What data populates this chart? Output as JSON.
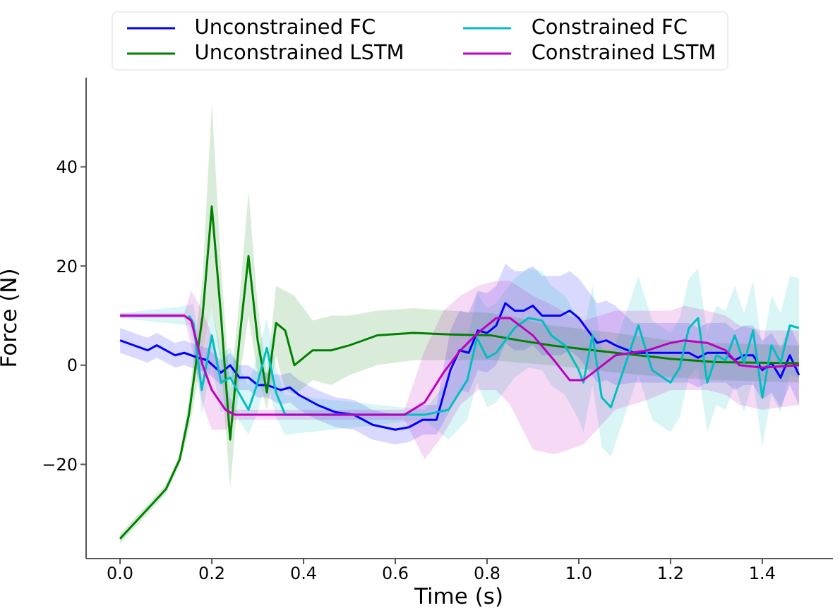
{
  "chart_data": {
    "type": "line",
    "xlabel": "Time (s)",
    "ylabel": "Force (N)",
    "xlim": [
      -0.074,
      1.554
    ],
    "ylim": [
      -39,
      58
    ],
    "xticks": [
      {
        "value": 0,
        "label": "0.0"
      },
      {
        "value": 0.2,
        "label": "0.2"
      },
      {
        "value": 0.4,
        "label": "0.4"
      },
      {
        "value": 0.6,
        "label": "0.6"
      },
      {
        "value": 0.8,
        "label": "0.8"
      },
      {
        "value": 1,
        "label": "1.0"
      },
      {
        "value": 1.2,
        "label": "1.2"
      },
      {
        "value": 1.4,
        "label": "1.4"
      }
    ],
    "yticks": [
      {
        "value": -20,
        "label": "−20"
      },
      0,
      20,
      40
    ],
    "grid": false,
    "legend": "top",
    "marker": "none",
    "line_style": "solid",
    "series": [
      {
        "name": "Unconstrained FC",
        "color": "#0000ff",
        "x": [
          0,
          0.06,
          0.08,
          0.12,
          0.14,
          0.17,
          0.19,
          0.22,
          0.24,
          0.26,
          0.28,
          0.3,
          0.32,
          0.35,
          0.37,
          0.39,
          0.43,
          0.47,
          0.51,
          0.55,
          0.6,
          0.63,
          0.66,
          0.69,
          0.72,
          0.74,
          0.76,
          0.78,
          0.8,
          0.82,
          0.84,
          0.86,
          0.88,
          0.9,
          0.92,
          0.94,
          0.96,
          0.98,
          1.0,
          1.02,
          1.04,
          1.06,
          1.08,
          1.12,
          1.2,
          1.24,
          1.26,
          1.28,
          1.3,
          1.32,
          1.34,
          1.36,
          1.38,
          1.4,
          1.42,
          1.44,
          1.46,
          1.48
        ],
        "values": [
          5,
          3,
          4,
          2,
          2.5,
          1.5,
          1,
          -1.5,
          0,
          -2.5,
          -2.5,
          -4,
          -4,
          -5,
          -4.5,
          -6,
          -8,
          -9.5,
          -10,
          -12,
          -13,
          -12.5,
          -11,
          -11,
          -1,
          3,
          2.5,
          7,
          6.5,
          8,
          12.5,
          11,
          11,
          12,
          10,
          10,
          10,
          11,
          9.5,
          7,
          4.5,
          5,
          4,
          2.5,
          2.5,
          2.5,
          1.5,
          2.5,
          2.5,
          2.5,
          1,
          2,
          2,
          -1,
          0.5,
          -2.5,
          2,
          -2
        ],
        "lower": [
          2.5,
          0.5,
          1.5,
          -0.5,
          0,
          -1,
          -1.5,
          -4,
          -2.5,
          -5,
          -5,
          -6.5,
          -6.5,
          -8,
          -7.5,
          -9,
          -11,
          -12.5,
          -13,
          -15,
          -16,
          -15.5,
          -14,
          -14,
          -9,
          -5,
          -5.5,
          -1,
          -1.5,
          0,
          4.5,
          3,
          3,
          4,
          2,
          2,
          2,
          3,
          1.5,
          -1,
          -3.5,
          -3,
          -4,
          -3.5,
          -3.5,
          -3.5,
          -4.5,
          -3.5,
          -3.5,
          -3.5,
          -5,
          -4,
          -4,
          -7,
          -5.5,
          -8.5,
          -4,
          -8
        ],
        "upper": [
          7.5,
          5.5,
          6.5,
          4.5,
          5,
          4,
          3.5,
          1,
          2.5,
          0,
          0,
          -1.5,
          -1.5,
          -2,
          -1.5,
          -3,
          -5,
          -6.5,
          -7,
          -9,
          -10,
          -9.5,
          -8,
          -8,
          7,
          11,
          10.5,
          15,
          14.5,
          16,
          20.5,
          19,
          19,
          20,
          18,
          18,
          18,
          19,
          17.5,
          15,
          12.5,
          13,
          12,
          8.5,
          8.5,
          8.5,
          7.5,
          8.5,
          8.5,
          8.5,
          7,
          8,
          8,
          5,
          6.5,
          3.5,
          8,
          4
        ]
      },
      {
        "name": "Unconstrained LSTM",
        "color": "#008000",
        "x": [
          0,
          0.02,
          0.05,
          0.07,
          0.1,
          0.11,
          0.13,
          0.15,
          0.18,
          0.2,
          0.22,
          0.24,
          0.26,
          0.28,
          0.3,
          0.32,
          0.34,
          0.36,
          0.38,
          0.42,
          0.46,
          0.5,
          0.56,
          0.64,
          0.72,
          0.81,
          0.87,
          0.94,
          1.08,
          1.2,
          1.3,
          1.48
        ],
        "values": [
          -35,
          -33,
          -30,
          -28,
          -25,
          -23,
          -19,
          -10,
          10,
          32,
          10,
          -15,
          5,
          22,
          5,
          -5.5,
          8.5,
          7,
          0,
          3,
          3,
          4,
          6,
          6.5,
          6.2,
          6,
          5,
          4,
          2.5,
          1.3,
          0.6,
          0.4
        ],
        "lower": [
          -36,
          -34,
          -31,
          -29,
          -26,
          -24,
          -20,
          -13,
          2,
          12,
          0,
          -25,
          -3,
          10,
          -2,
          -9,
          2,
          -5,
          -6,
          -3,
          -4,
          -2,
          0,
          1,
          1,
          1,
          0.5,
          0,
          -1.5,
          -2.5,
          -3,
          -3.5
        ],
        "upper": [
          -34,
          -32,
          -29,
          -27,
          -24,
          -22,
          -18,
          -7,
          18,
          53,
          20,
          -5,
          13,
          35,
          12,
          -2,
          16,
          15,
          14,
          9,
          10,
          10,
          11,
          11.5,
          11,
          10.5,
          9.5,
          8,
          6.5,
          5,
          4.5,
          4
        ]
      },
      {
        "name": "Constrained FC",
        "color": "#00bfbf",
        "x": [
          0,
          0.15,
          0.16,
          0.178,
          0.2,
          0.22,
          0.24,
          0.28,
          0.3,
          0.32,
          0.34,
          0.36,
          0.664,
          0.716,
          0.757,
          0.778,
          0.8,
          0.82,
          0.86,
          0.89,
          0.92,
          0.94,
          0.97,
          1.0,
          1.01,
          1.03,
          1.05,
          1.07,
          1.13,
          1.16,
          1.2,
          1.22,
          1.24,
          1.26,
          1.28,
          1.3,
          1.32,
          1.34,
          1.36,
          1.38,
          1.4,
          1.42,
          1.44,
          1.46,
          1.48
        ],
        "values": [
          null,
          10,
          8.5,
          -5,
          6,
          -3.5,
          -2.5,
          -9,
          -3.5,
          3.5,
          -5.5,
          -10,
          -10,
          -9,
          -3,
          5.5,
          1.5,
          2.5,
          7.5,
          9.5,
          9,
          6,
          4,
          -1,
          -3.5,
          6,
          -6.5,
          -8.5,
          8,
          -1,
          -3.5,
          -0.5,
          7.5,
          9.5,
          -3.5,
          2,
          1,
          6,
          0.5,
          7,
          -6.5,
          4,
          0.5,
          8,
          7.5
        ],
        "lower": [
          9.5,
          8,
          4.5,
          -10,
          0,
          -9.5,
          -8.5,
          -14,
          -9.5,
          -2.5,
          -10.5,
          -14,
          -11,
          -15,
          -11,
          -3.5,
          -8.5,
          -7.5,
          -2.5,
          -0.5,
          -1,
          -4,
          -6,
          -11,
          -13.5,
          -4,
          -16.5,
          -18.5,
          -2,
          -11,
          -13.5,
          -10.5,
          -2.5,
          -0.5,
          -13.5,
          -8,
          -9,
          -4,
          -9.5,
          -3,
          -16.5,
          -6,
          -9.5,
          -2,
          -2.5
        ],
        "upper": [
          10.5,
          12,
          12.5,
          0,
          12,
          2.5,
          3.5,
          -4,
          2.5,
          9.5,
          -0.5,
          -6,
          -9,
          -3,
          5,
          14.5,
          11.5,
          12.5,
          17.5,
          19.5,
          19,
          16,
          14,
          9,
          6.5,
          16,
          3.5,
          1.5,
          18,
          9,
          6.5,
          9.5,
          17.5,
          19.5,
          6.5,
          12,
          11,
          16,
          10.5,
          17,
          3.5,
          14,
          10.5,
          18,
          17.5
        ]
      },
      {
        "name": "Constrained LSTM",
        "color": "#bf00bf",
        "x": [
          0,
          0.14,
          0.155,
          0.18,
          0.2,
          0.23,
          0.25,
          0.62,
          0.664,
          0.705,
          0.742,
          0.78,
          0.82,
          0.85,
          0.9,
          0.946,
          0.98,
          1.01,
          1.08,
          1.15,
          1.2,
          1.23,
          1.28,
          1.32,
          1.35,
          1.4,
          1.48
        ],
        "values": [
          10,
          10,
          9,
          0,
          -5,
          -9,
          -10,
          -10,
          -7.5,
          -1.5,
          3,
          6.5,
          9.5,
          9.5,
          6,
          1,
          -3,
          -3,
          2,
          3,
          4.5,
          5,
          4.5,
          3,
          0,
          -0.5,
          0
        ],
        "lower": [
          9.5,
          9.5,
          4,
          -8,
          -13,
          -13,
          -11,
          -11,
          -19,
          -14,
          -8,
          -5,
          -5,
          -8,
          -17,
          -18,
          -17,
          -16,
          -9,
          -7,
          -5,
          -5,
          -5,
          -6,
          -8,
          -9,
          -8
        ],
        "upper": [
          10.5,
          10.5,
          15,
          11,
          6,
          -4,
          -9,
          -9,
          3,
          11,
          14,
          16,
          17,
          17,
          14,
          12,
          10,
          9,
          11,
          11,
          11,
          12,
          11,
          10,
          8,
          7,
          7
        ]
      }
    ]
  }
}
